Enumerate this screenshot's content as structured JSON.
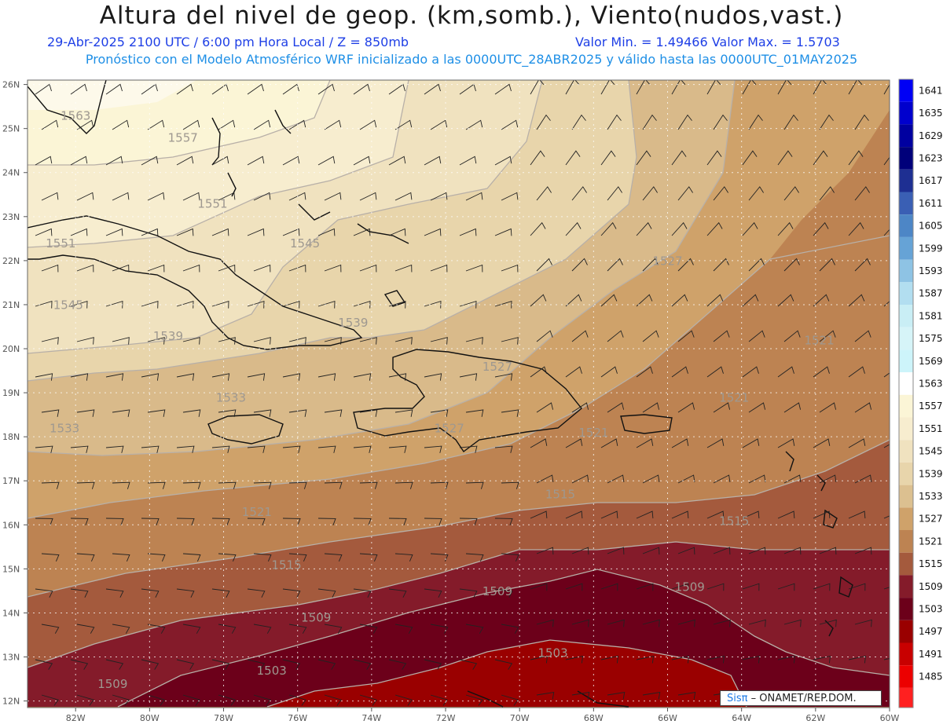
{
  "header": {
    "title": "Altura del nivel de geop. (km,somb.), Viento(nudos,vast.)",
    "subtitle_left": "29-Abr-2025  2100 UTC / 6:00 pm Hora Local / Z = 850mb",
    "subtitle_right": "Valor Min. = 1.49466  Valor Max. = 1.5703",
    "subtitle_model": "Pronóstico con el Modelo Atmosférico WRF inicializado a las 0000UTC_28ABR2025 y válido hasta las  0000UTC_01MAY2025"
  },
  "map": {
    "lat_labels": [
      "26N",
      "25N",
      "24N",
      "23N",
      "22N",
      "21N",
      "20N",
      "19N",
      "18N",
      "17N",
      "16N",
      "15N",
      "14N",
      "13N",
      "12N"
    ],
    "lon_labels": [
      "82W",
      "80W",
      "78W",
      "76W",
      "74W",
      "72W",
      "70W",
      "68W",
      "66W",
      "64W",
      "62W",
      "60W"
    ],
    "contour_labels": [
      {
        "text": "1563",
        "lon": -82.0,
        "lat": 25.2
      },
      {
        "text": "1557",
        "lon": -79.1,
        "lat": 24.7
      },
      {
        "text": "1551",
        "lon": -78.3,
        "lat": 23.2
      },
      {
        "text": "1551",
        "lon": -82.4,
        "lat": 22.3
      },
      {
        "text": "1545",
        "lon": -75.8,
        "lat": 22.3
      },
      {
        "text": "1545",
        "lon": -82.2,
        "lat": 20.9
      },
      {
        "text": "1539",
        "lon": -79.5,
        "lat": 20.2
      },
      {
        "text": "1539",
        "lon": -74.5,
        "lat": 20.5
      },
      {
        "text": "1533",
        "lon": -77.8,
        "lat": 18.8
      },
      {
        "text": "1533",
        "lon": -82.3,
        "lat": 18.1
      },
      {
        "text": "1527",
        "lon": -70.6,
        "lat": 19.5
      },
      {
        "text": "1527",
        "lon": -71.9,
        "lat": 18.1
      },
      {
        "text": "1527",
        "lon": -66.0,
        "lat": 21.9
      },
      {
        "text": "1521",
        "lon": -68.0,
        "lat": 18.0
      },
      {
        "text": "1521",
        "lon": -64.2,
        "lat": 18.8
      },
      {
        "text": "1521",
        "lon": -61.9,
        "lat": 20.1
      },
      {
        "text": "1521",
        "lon": -77.1,
        "lat": 16.2
      },
      {
        "text": "1515",
        "lon": -68.9,
        "lat": 16.6
      },
      {
        "text": "1515",
        "lon": -64.2,
        "lat": 16.0
      },
      {
        "text": "1515",
        "lon": -76.3,
        "lat": 15.0
      },
      {
        "text": "1509",
        "lon": -70.6,
        "lat": 14.4
      },
      {
        "text": "1509",
        "lon": -65.4,
        "lat": 14.5
      },
      {
        "text": "1509",
        "lon": -75.5,
        "lat": 13.8
      },
      {
        "text": "1509",
        "lon": -81.0,
        "lat": 12.3
      },
      {
        "text": "1503",
        "lon": -69.1,
        "lat": 13.0
      },
      {
        "text": "1503",
        "lon": -76.7,
        "lat": 12.6
      }
    ],
    "colorbar": [
      {
        "value": "1641",
        "color": "#0000f5"
      },
      {
        "value": "1635",
        "color": "#0000cd"
      },
      {
        "value": "1629",
        "color": "#0000a0"
      },
      {
        "value": "1623",
        "color": "#00007a"
      },
      {
        "value": "1617",
        "color": "#1e2f92"
      },
      {
        "value": "1611",
        "color": "#3a5fb4"
      },
      {
        "value": "1605",
        "color": "#4d86c6"
      },
      {
        "value": "1599",
        "color": "#66a3d6"
      },
      {
        "value": "1593",
        "color": "#8ec3e4"
      },
      {
        "value": "1587",
        "color": "#b2def0"
      },
      {
        "value": "1581",
        "color": "#c9eef5"
      },
      {
        "value": "1575",
        "color": "#d6f4f8"
      },
      {
        "value": "1569",
        "color": "#cdf4fa"
      },
      {
        "value": "1563",
        "color": "#ffffff"
      },
      {
        "value": "1557",
        "color": "#fbf5d6"
      },
      {
        "value": "1551",
        "color": "#f7edcf"
      },
      {
        "value": "1545",
        "color": "#f0e2bf"
      },
      {
        "value": "1539",
        "color": "#e8d5ab"
      },
      {
        "value": "1533",
        "color": "#dcc090"
      },
      {
        "value": "1527",
        "color": "#cfa26a"
      },
      {
        "value": "1521",
        "color": "#bd8352"
      },
      {
        "value": "1515",
        "color": "#a45a3d"
      },
      {
        "value": "1509",
        "color": "#841b2a"
      },
      {
        "value": "1503",
        "color": "#6c001a"
      },
      {
        "value": "1497",
        "color": "#9a0000"
      },
      {
        "value": "1491",
        "color": "#c80000"
      },
      {
        "value": "1485",
        "color": "#ec0000"
      }
    ],
    "colorbar_bottom_color": "#ff2020"
  },
  "credit": {
    "sis": "Sisπ",
    "rest": " – ONAMET/REP.DOM."
  }
}
